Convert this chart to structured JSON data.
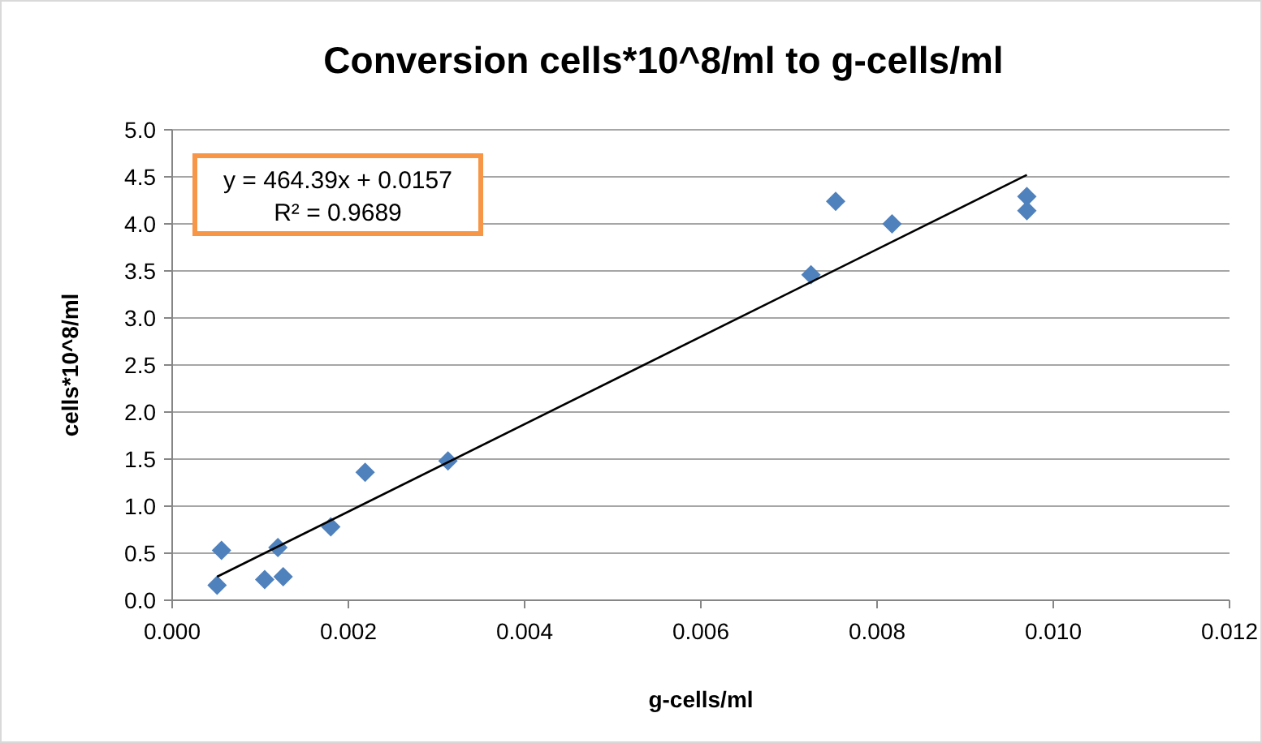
{
  "chart_data": {
    "type": "scatter",
    "title": "Conversion cells*10^8/ml to g-cells/ml",
    "xlabel": "g-cells/ml",
    "ylabel": "cells*10^8/ml",
    "annotations": [
      "y = 464.39x + 0.0157",
      "R² = 0.9689"
    ],
    "series": [
      {
        "color": "#4f81bd",
        "marker": "diamond",
        "x": [
          0.00051,
          0.00056,
          0.00105,
          0.00126,
          0.0012,
          0.0018,
          0.00219,
          0.00313,
          0.00725,
          0.00753,
          0.00817,
          0.0097,
          0.0097
        ],
        "values": [
          0.16,
          0.53,
          0.22,
          0.25,
          0.56,
          0.78,
          1.36,
          1.48,
          3.46,
          4.24,
          4.0,
          4.29,
          4.14
        ]
      },
      {
        "type": "line",
        "color": "#000000",
        "marker": "none",
        "x": [
          0.00051,
          0.0097
        ],
        "values": [
          0.25,
          4.52
        ]
      }
    ],
    "xlim": [
      0,
      0.012
    ],
    "xticks": [
      {
        "value": 0,
        "label": "0.000"
      },
      {
        "value": 0.002,
        "label": "0.002"
      },
      {
        "value": 0.004,
        "label": "0.004"
      },
      {
        "value": 0.006,
        "label": "0.006"
      },
      {
        "value": 0.008,
        "label": "0.008"
      },
      {
        "value": 0.01,
        "label": "0.010"
      },
      {
        "value": 0.012,
        "label": "0.012"
      }
    ],
    "ylim": [
      0,
      5
    ],
    "yticks": [
      {
        "value": 0,
        "label": "0.0"
      },
      {
        "value": 0.5,
        "label": "0.5"
      },
      {
        "value": 1,
        "label": "1.0"
      },
      {
        "value": 1.5,
        "label": "1.5"
      },
      {
        "value": 2,
        "label": "2.0"
      },
      {
        "value": 2.5,
        "label": "2.5"
      },
      {
        "value": 3,
        "label": "3.0"
      },
      {
        "value": 3.5,
        "label": "3.5"
      },
      {
        "value": 4,
        "label": "4.0"
      },
      {
        "value": 4.5,
        "label": "4.5"
      },
      {
        "value": 5,
        "label": "5.0"
      }
    ],
    "grid": "y"
  }
}
